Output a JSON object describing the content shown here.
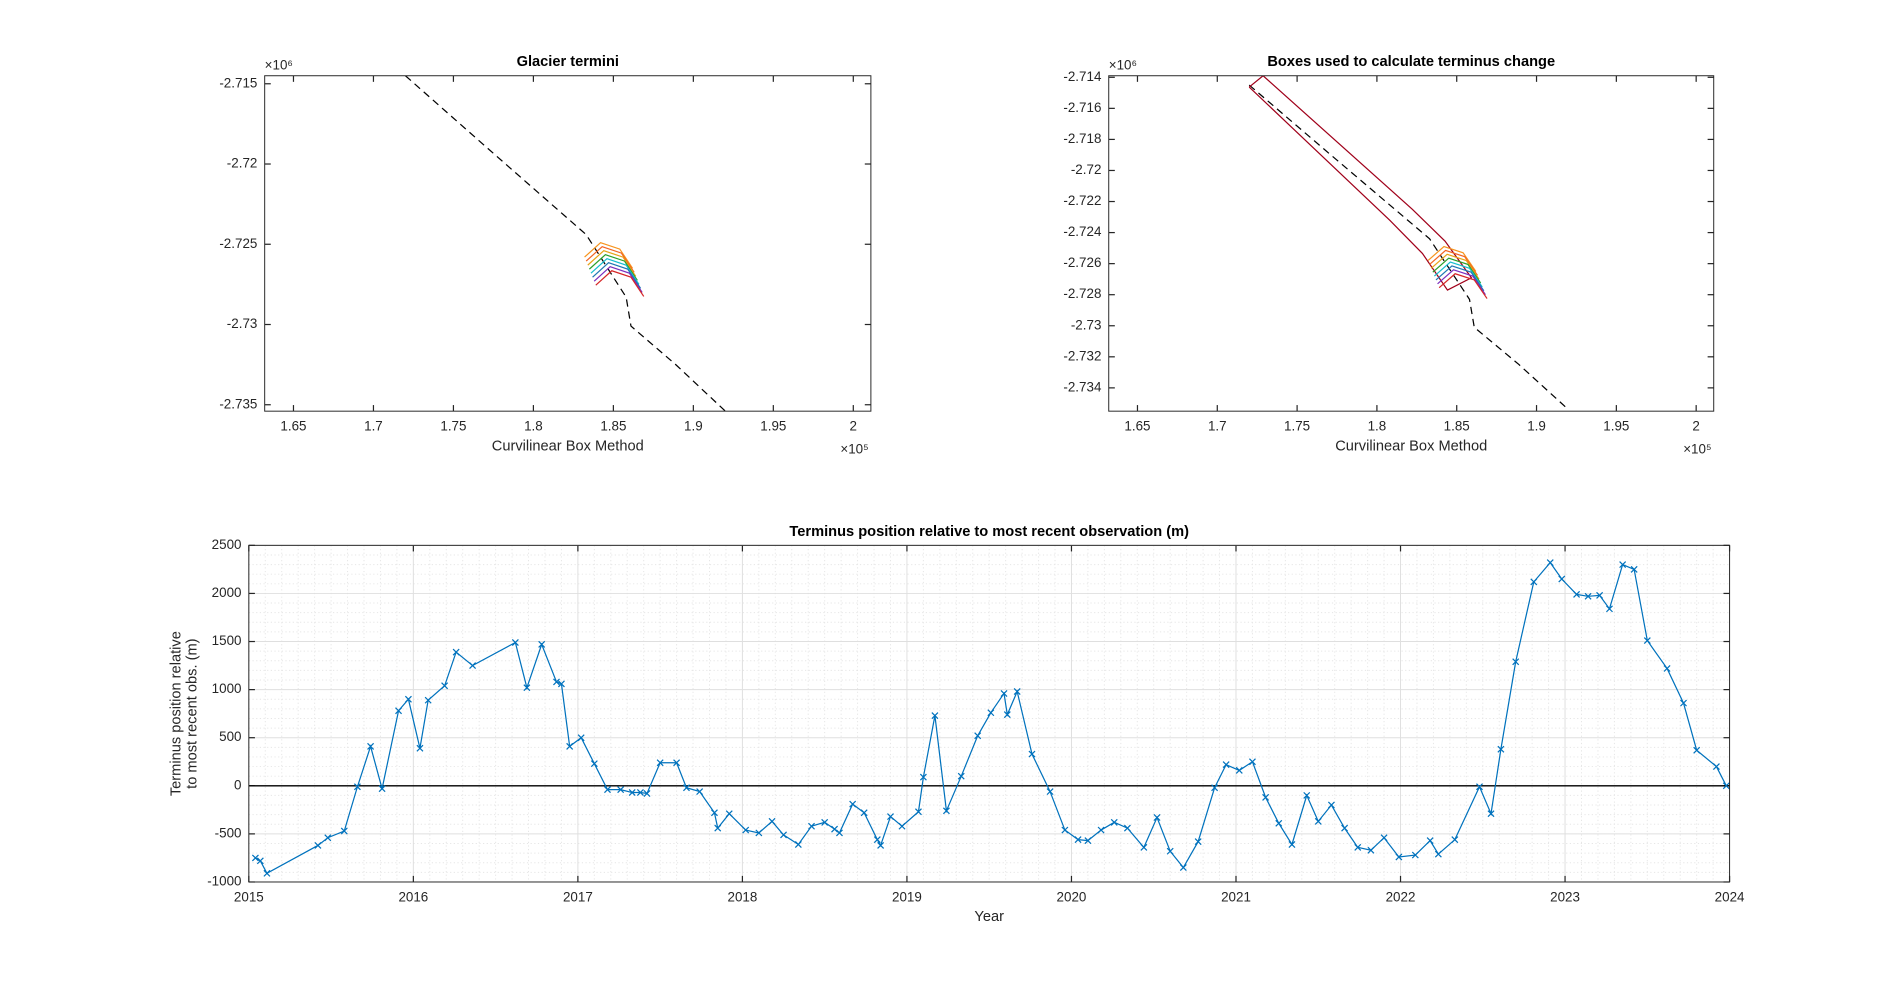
{
  "chart_data": [
    {
      "type": "line",
      "title": "Glacier termini",
      "xlabel": "Curvilinear Box Method",
      "xscale_label": "×10⁵",
      "yscale_label": "×10⁶",
      "xlim": [
        163200,
        201100
      ],
      "ylim": [
        -2735400,
        -2714500
      ],
      "xticks": [
        {
          "value": 165000,
          "label": "1.65"
        },
        {
          "value": 170000,
          "label": "1.7"
        },
        {
          "value": 175000,
          "label": "1.75"
        },
        {
          "value": 180000,
          "label": "1.8"
        },
        {
          "value": 185000,
          "label": "1.85"
        },
        {
          "value": 190000,
          "label": "1.9"
        },
        {
          "value": 195000,
          "label": "1.95"
        },
        {
          "value": 200000,
          "label": "2"
        }
      ],
      "yticks": [
        {
          "value": -2715000,
          "label": "-2.715"
        },
        {
          "value": -2720000,
          "label": "-2.72"
        },
        {
          "value": -2725000,
          "label": "-2.725"
        },
        {
          "value": -2730000,
          "label": "-2.73"
        },
        {
          "value": -2735000,
          "label": "-2.735"
        }
      ],
      "series": [
        {
          "color": "#000000",
          "style": "dashed",
          "x": [
            172000,
            177000,
            183300,
            185800,
            186100,
            188900,
            192000
          ],
          "y": [
            -2714500,
            -2718900,
            -2724400,
            -2728300,
            -2730100,
            -2732500,
            -2735400
          ]
        },
        {
          "color": "#f7941d",
          "x": [
            183200,
            184200,
            185400,
            186200
          ],
          "y": [
            -2725800,
            -2724900,
            -2725300,
            -2726500
          ]
        },
        {
          "color": "#f26522",
          "x": [
            183300,
            184300,
            185500,
            186300
          ],
          "y": [
            -2726050,
            -2725150,
            -2725550,
            -2726750
          ]
        },
        {
          "color": "#e8a317",
          "x": [
            183400,
            184400,
            185600,
            186400
          ],
          "y": [
            -2726300,
            -2725400,
            -2725800,
            -2727000
          ]
        },
        {
          "color": "#2ca02c",
          "x": [
            183500,
            184500,
            185700,
            186500
          ],
          "y": [
            -2726550,
            -2725650,
            -2726050,
            -2727250
          ]
        },
        {
          "color": "#17becf",
          "x": [
            183600,
            184600,
            185800,
            186600
          ],
          "y": [
            -2726800,
            -2725900,
            -2726300,
            -2727500
          ]
        },
        {
          "color": "#1f77b4",
          "x": [
            183700,
            184700,
            185900,
            186700
          ],
          "y": [
            -2727050,
            -2726150,
            -2726550,
            -2727750
          ]
        },
        {
          "color": "#7b2fbe",
          "x": [
            183800,
            184800,
            186000,
            186800
          ],
          "y": [
            -2727300,
            -2726400,
            -2726800,
            -2728000
          ]
        },
        {
          "color": "#d62728",
          "x": [
            183900,
            184900,
            186100,
            186900
          ],
          "y": [
            -2727550,
            -2726650,
            -2727050,
            -2728250
          ]
        }
      ]
    },
    {
      "type": "line",
      "title": "Boxes used to calculate terminus change",
      "xlabel": "Curvilinear Box Method",
      "xscale_label": "×10⁵",
      "yscale_label": "×10⁶",
      "xlim": [
        163200,
        201100
      ],
      "ylim": [
        -2735500,
        -2713900
      ],
      "xticks": [
        {
          "value": 165000,
          "label": "1.65"
        },
        {
          "value": 170000,
          "label": "1.7"
        },
        {
          "value": 175000,
          "label": "1.75"
        },
        {
          "value": 180000,
          "label": "1.8"
        },
        {
          "value": 185000,
          "label": "1.85"
        },
        {
          "value": 190000,
          "label": "1.9"
        },
        {
          "value": 195000,
          "label": "1.95"
        },
        {
          "value": 200000,
          "label": "2"
        }
      ],
      "yticks": [
        {
          "value": -2714000,
          "label": "-2.714"
        },
        {
          "value": -2716000,
          "label": "-2.716"
        },
        {
          "value": -2718000,
          "label": "-2.718"
        },
        {
          "value": -2720000,
          "label": "-2.72"
        },
        {
          "value": -2722000,
          "label": "-2.722"
        },
        {
          "value": -2724000,
          "label": "-2.724"
        },
        {
          "value": -2726000,
          "label": "-2.726"
        },
        {
          "value": -2728000,
          "label": "-2.728"
        },
        {
          "value": -2730000,
          "label": "-2.73"
        },
        {
          "value": -2732000,
          "label": "-2.732"
        },
        {
          "value": -2734000,
          "label": "-2.734"
        }
      ],
      "series": [
        {
          "color": "#000000",
          "style": "dashed",
          "x": [
            172000,
            177000,
            183300,
            185800,
            186100,
            188900,
            192000
          ],
          "y": [
            -2714500,
            -2718900,
            -2724400,
            -2728300,
            -2730100,
            -2732500,
            -2735400
          ]
        },
        {
          "color": "#a0001a",
          "x": [
            172000,
            172870,
            182220,
            184270,
            185920,
            184420,
            182850,
            180810,
            172000
          ],
          "y": [
            -2714630,
            -2713900,
            -2722500,
            -2724550,
            -2726910,
            -2727700,
            -2725340,
            -2723210,
            -2714630
          ]
        },
        {
          "color": "#f7941d",
          "x": [
            183200,
            184200,
            185400,
            186200
          ],
          "y": [
            -2725800,
            -2724900,
            -2725300,
            -2726500
          ]
        },
        {
          "color": "#f26522",
          "x": [
            183300,
            184300,
            185500,
            186300
          ],
          "y": [
            -2726050,
            -2725150,
            -2725550,
            -2726750
          ]
        },
        {
          "color": "#e8a317",
          "x": [
            183400,
            184400,
            185600,
            186400
          ],
          "y": [
            -2726300,
            -2725400,
            -2725800,
            -2727000
          ]
        },
        {
          "color": "#2ca02c",
          "x": [
            183500,
            184500,
            185700,
            186500
          ],
          "y": [
            -2726550,
            -2725650,
            -2726050,
            -2727250
          ]
        },
        {
          "color": "#17becf",
          "x": [
            183600,
            184600,
            185800,
            186600
          ],
          "y": [
            -2726800,
            -2725900,
            -2726300,
            -2727500
          ]
        },
        {
          "color": "#1f77b4",
          "x": [
            183700,
            184700,
            185900,
            186700
          ],
          "y": [
            -2727050,
            -2726150,
            -2726550,
            -2727750
          ]
        },
        {
          "color": "#7b2fbe",
          "x": [
            183800,
            184800,
            186000,
            186800
          ],
          "y": [
            -2727300,
            -2726400,
            -2726800,
            -2728000
          ]
        },
        {
          "color": "#d62728",
          "x": [
            183900,
            184900,
            186100,
            186900
          ],
          "y": [
            -2727550,
            -2726650,
            -2727050,
            -2728250
          ]
        }
      ]
    },
    {
      "type": "line",
      "title": "Terminus position relative to most recent observation (m)",
      "xlabel": "Year",
      "ylabel": [
        "Terminus position relative",
        "to most recent obs. (m)"
      ],
      "xlim": [
        2015,
        2024
      ],
      "ylim": [
        -1000,
        2500
      ],
      "xticks": [
        2015,
        2016,
        2017,
        2018,
        2019,
        2020,
        2021,
        2022,
        2023,
        2024
      ],
      "yticks": [
        -1000,
        -500,
        0,
        500,
        1000,
        1500,
        2000,
        2500
      ],
      "grid": true,
      "minor_grid": true,
      "reference_line": 0,
      "marker": "x",
      "series": [
        {
          "color": "#0072bd",
          "x": [
            2015.04,
            2015.07,
            2015.11,
            2015.42,
            2015.48,
            2015.58,
            2015.66,
            2015.74,
            2015.81,
            2015.91,
            2015.97,
            2016.04,
            2016.09,
            2016.19,
            2016.26,
            2016.36,
            2016.62,
            2016.69,
            2016.78,
            2016.87,
            2016.9,
            2016.95,
            2017.02,
            2017.1,
            2017.18,
            2017.26,
            2017.33,
            2017.38,
            2017.42,
            2017.5,
            2017.6,
            2017.66,
            2017.74,
            2017.83,
            2017.85,
            2017.92,
            2018.02,
            2018.1,
            2018.18,
            2018.25,
            2018.34,
            2018.42,
            2018.5,
            2018.56,
            2018.59,
            2018.67,
            2018.74,
            2018.82,
            2018.84,
            2018.9,
            2018.97,
            2019.07,
            2019.1,
            2019.17,
            2019.24,
            2019.33,
            2019.43,
            2019.51,
            2019.59,
            2019.61,
            2019.67,
            2019.76,
            2019.87,
            2019.96,
            2020.04,
            2020.1,
            2020.18,
            2020.26,
            2020.34,
            2020.44,
            2020.52,
            2020.6,
            2020.68,
            2020.77,
            2020.87,
            2020.94,
            2021.02,
            2021.1,
            2021.18,
            2021.26,
            2021.34,
            2021.43,
            2021.5,
            2021.58,
            2021.66,
            2021.74,
            2021.82,
            2021.9,
            2021.99,
            2022.09,
            2022.18,
            2022.23,
            2022.33,
            2022.48,
            2022.55,
            2022.61,
            2022.7,
            2022.81,
            2022.91,
            2022.98,
            2023.07,
            2023.14,
            2023.21,
            2023.27,
            2023.35,
            2023.42,
            2023.5,
            2023.62,
            2023.72,
            2023.8,
            2023.92,
            2023.98
          ],
          "y": [
            -750,
            -780,
            -910,
            -620,
            -540,
            -470,
            -10,
            410,
            -30,
            780,
            900,
            390,
            890,
            1040,
            1390,
            1250,
            1490,
            1020,
            1470,
            1080,
            1060,
            410,
            500,
            230,
            -40,
            -40,
            -70,
            -70,
            -80,
            240,
            240,
            -20,
            -60,
            -280,
            -440,
            -290,
            -460,
            -490,
            -370,
            -510,
            -610,
            -420,
            -380,
            -450,
            -490,
            -190,
            -280,
            -560,
            -620,
            -320,
            -420,
            -270,
            90,
            730,
            -260,
            100,
            520,
            760,
            960,
            740,
            980,
            330,
            -60,
            -460,
            -560,
            -570,
            -460,
            -380,
            -440,
            -640,
            -330,
            -680,
            -850,
            -580,
            -20,
            220,
            160,
            250,
            -120,
            -390,
            -610,
            -100,
            -370,
            -200,
            -440,
            -640,
            -670,
            -540,
            -740,
            -720,
            -570,
            -710,
            -560,
            -10,
            -290,
            380,
            1290,
            2120,
            2320,
            2150,
            1990,
            1970,
            1980,
            1840,
            2300,
            2250,
            1510,
            1220,
            860,
            370,
            200,
            0
          ]
        }
      ]
    }
  ]
}
